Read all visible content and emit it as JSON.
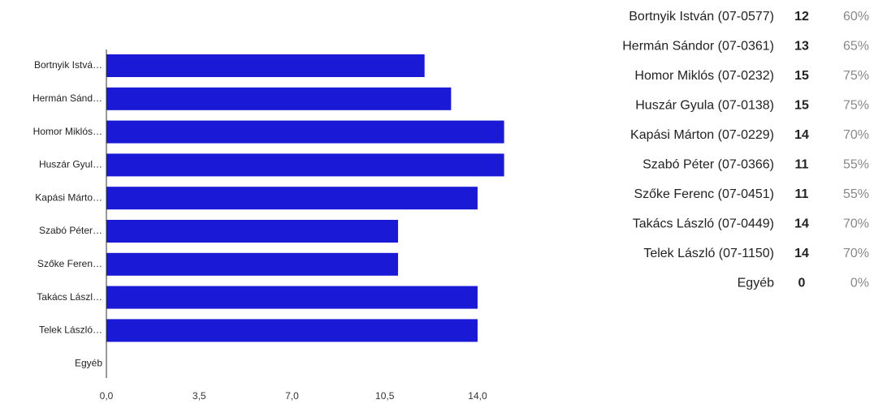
{
  "chart_data": {
    "type": "bar",
    "orientation": "horizontal",
    "categories": [
      "Bortnyik Istvá…",
      "Hermán Sánd…",
      "Homor Miklós…",
      "Huszár Gyul…",
      "Kapási Márto…",
      "Szabó Péter…",
      "Szőke Feren…",
      "Takács Lászl…",
      "Telek László…",
      "Egyéb"
    ],
    "values": [
      12,
      13,
      15,
      15,
      14,
      11,
      11,
      14,
      14,
      0
    ],
    "color": "#1a1ad6",
    "xlim": [
      0,
      15
    ],
    "xticks": [
      {
        "value": 0,
        "label": "0,0"
      },
      {
        "value": 3.5,
        "label": "3,5"
      },
      {
        "value": 7,
        "label": "7,0"
      },
      {
        "value": 10.5,
        "label": "10,5"
      },
      {
        "value": 14,
        "label": "14,0"
      }
    ],
    "grid": false
  },
  "table": {
    "rows": [
      [
        "Bortnyik István (07-0577)",
        "12",
        "60%"
      ],
      [
        "Hermán Sándor (07-0361)",
        "13",
        "65%"
      ],
      [
        "Homor Miklós (07-0232)",
        "15",
        "75%"
      ],
      [
        "Huszár Gyula (07-0138)",
        "15",
        "75%"
      ],
      [
        "Kapási Márton (07-0229)",
        "14",
        "70%"
      ],
      [
        "Szabó Péter (07-0366)",
        "11",
        "55%"
      ],
      [
        "Szőke Ferenc (07-0451)",
        "11",
        "55%"
      ],
      [
        "Takács László (07-0449)",
        "14",
        "70%"
      ],
      [
        "Telek László (07-1150)",
        "14",
        "70%"
      ],
      [
        "Egyéb",
        "0",
        "0%"
      ]
    ]
  }
}
